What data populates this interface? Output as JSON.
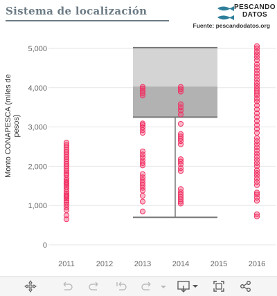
{
  "header": {
    "title": "Sistema  de  localización"
  },
  "brand": {
    "line1": "PESCANDO",
    "line2": "DATOS"
  },
  "source": "Fuente: pescandodatos.org",
  "chart_data": {
    "type": "scatter",
    "title": "Sistema  de  localización",
    "ylabel": "Monto CONAPESCA (miles de pesos)",
    "xlabel": "",
    "categories": [
      "2011",
      "2012",
      "2013",
      "2014",
      "2015",
      "2016"
    ],
    "ylim": [
      0,
      5100
    ],
    "yticks": [
      0,
      1000,
      2000,
      3000,
      4000,
      5000
    ],
    "ytick_labels": [
      "0",
      "1,000",
      "2,000",
      "3,000",
      "4,000",
      "5,000"
    ],
    "grid": true,
    "box": {
      "whisker_low": 700,
      "q1": 3250,
      "median": 4030,
      "q3": 5020,
      "whisker_high": 5020,
      "x_from": "2013",
      "x_to": "2015"
    },
    "series": [
      {
        "values_by_category": {
          "2011": [
            650,
            750,
            880,
            950,
            1020,
            1080,
            1120,
            1180,
            1220,
            1260,
            1300,
            1350,
            1420,
            1480,
            1520,
            1560,
            1600,
            1650,
            1700,
            1780,
            1820,
            1880,
            1940,
            2000,
            2060,
            2120,
            2180,
            2240,
            2300,
            2360,
            2420,
            2480,
            2540,
            2600
          ],
          "2012": [],
          "2013": [
            850,
            1100,
            1250,
            1380,
            1450,
            1520,
            1580,
            1650,
            1720,
            1800,
            2020,
            2080,
            2150,
            2230,
            2300,
            2380,
            2850,
            2920,
            2990,
            3050,
            3090,
            3800,
            3860,
            3920,
            3980,
            4020
          ],
          "2014": [
            1050,
            1100,
            1160,
            1220,
            1280,
            1340,
            1420,
            1880,
            1950,
            2050,
            2120,
            2180,
            2560,
            2640,
            2700,
            2760,
            2820,
            3080,
            3320,
            3420,
            3500,
            3580,
            3900,
            3960,
            4020
          ],
          "2015": [],
          "2016": [
            720,
            780,
            1120,
            1200,
            1280,
            1330,
            1520,
            1600,
            1680,
            1760,
            1830,
            1900,
            2000,
            2080,
            2160,
            2240,
            2320,
            2400,
            2480,
            2560,
            2640,
            2720,
            2850,
            2950,
            3050,
            3150,
            3250,
            3350,
            3450,
            3550,
            3650,
            3720,
            3800,
            3860,
            3920,
            3980,
            4050,
            4120,
            4200,
            4280,
            4360,
            4440,
            4520,
            4600,
            4700,
            4780,
            4850,
            4920,
            5000,
            5060
          ]
        }
      }
    ]
  },
  "toolbar": {
    "icons": [
      "move-icon",
      "undo-icon",
      "redo-icon",
      "revert-icon",
      "forward-icon",
      "download-icon",
      "fullscreen-icon",
      "share-icon"
    ]
  }
}
